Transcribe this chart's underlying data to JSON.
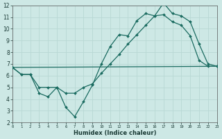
{
  "xlabel": "Humidex (Indice chaleur)",
  "ylabel": "",
  "x_ticks": [
    0,
    1,
    2,
    3,
    4,
    5,
    6,
    7,
    8,
    9,
    10,
    11,
    12,
    13,
    14,
    15,
    16,
    17,
    18,
    19,
    20,
    21,
    22,
    23
  ],
  "ylim": [
    2,
    12
  ],
  "xlim": [
    0,
    23
  ],
  "yticks": [
    2,
    3,
    4,
    5,
    6,
    7,
    8,
    9,
    10,
    11,
    12
  ],
  "background_color": "#cde8e5",
  "grid_color": "#b8d8d4",
  "line_color": "#1a6b60",
  "lines": [
    {
      "x": [
        0,
        1,
        2,
        3,
        4,
        5,
        6,
        7,
        8,
        9,
        10,
        11,
        12,
        13,
        14,
        15,
        16,
        17,
        18,
        19,
        20,
        21,
        22,
        23
      ],
      "y": [
        6.7,
        6.1,
        6.1,
        4.5,
        4.2,
        5.0,
        3.3,
        2.5,
        3.8,
        5.2,
        7.0,
        8.5,
        9.5,
        9.4,
        10.7,
        11.3,
        11.1,
        12.2,
        11.3,
        11.1,
        10.6,
        8.7,
        7.0,
        6.8
      ]
    },
    {
      "x": [
        0,
        1,
        2,
        3,
        4,
        5,
        6,
        7,
        8,
        9,
        10,
        11,
        12,
        13,
        14,
        15,
        16,
        17,
        18,
        19,
        20,
        21,
        22,
        23
      ],
      "y": [
        6.7,
        6.1,
        6.1,
        5.0,
        5.0,
        5.0,
        4.5,
        4.5,
        5.0,
        5.3,
        6.2,
        7.0,
        7.8,
        8.7,
        9.5,
        10.3,
        11.1,
        11.2,
        10.6,
        10.3,
        9.4,
        7.3,
        6.8,
        6.8
      ]
    },
    {
      "x": [
        0,
        23
      ],
      "y": [
        6.7,
        6.8
      ]
    }
  ]
}
